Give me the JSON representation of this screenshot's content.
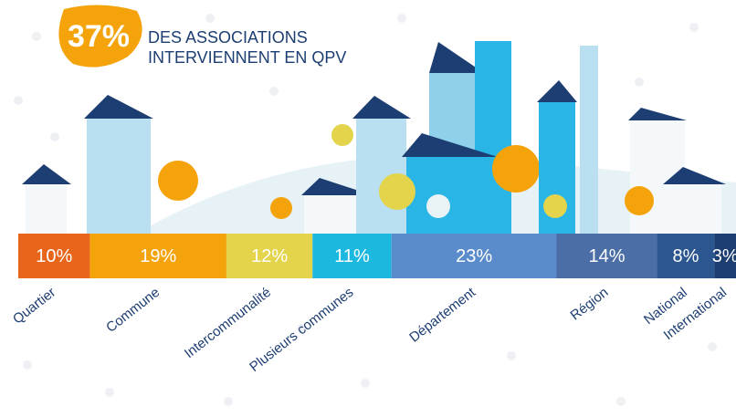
{
  "chart_data": {
    "type": "stacked-bar",
    "headline": "37%",
    "headline_text": [
      "DES ASSOCIATIONS",
      "INTERVIENNENT EN QPV"
    ],
    "categories": [
      "Quartier",
      "Commune",
      "Intercommunalité",
      "Plusieurs communes",
      "Département",
      "Région",
      "National",
      "International"
    ],
    "values": [
      10,
      19,
      12,
      11,
      23,
      14,
      8,
      3
    ],
    "value_labels": [
      "10%",
      "19%",
      "12%",
      "11%",
      "23%",
      "14%",
      "8%",
      "3%"
    ],
    "colors": [
      "#e8661c",
      "#f5a30a",
      "#e3d44c",
      "#1cb8df",
      "#5a8ccb",
      "#4a6ea5",
      "#2c5690",
      "#1d3e72"
    ]
  }
}
